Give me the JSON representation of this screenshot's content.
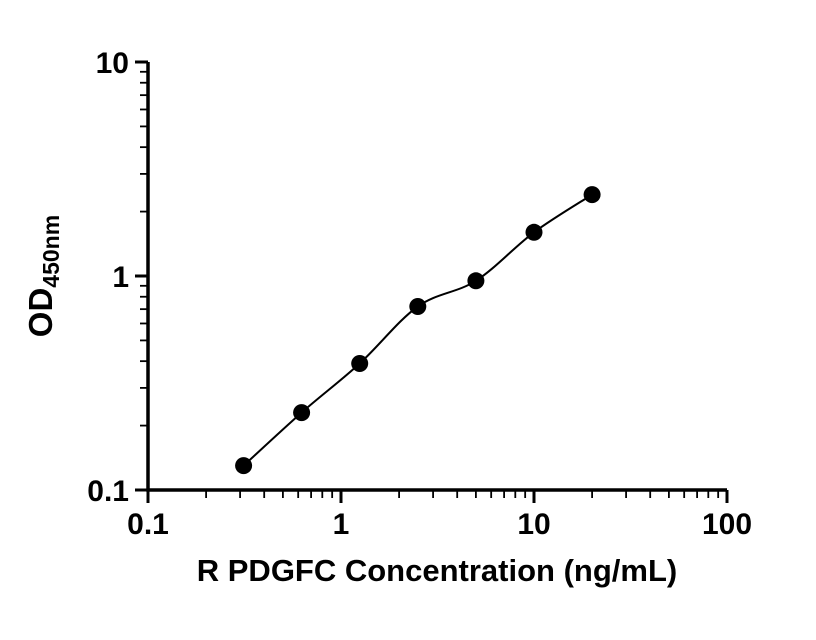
{
  "figure": {
    "background": "#ffffff",
    "axis_color": "#000000",
    "text_color": "#000000"
  },
  "chart_data": {
    "type": "scatter",
    "title": "",
    "xlabel": "R PDGFC Concentration (ng/mL)",
    "ylabel_main": "OD",
    "ylabel_sub": "450nm",
    "x_scale": "log10",
    "y_scale": "log10",
    "xlim": [
      0.1,
      100
    ],
    "ylim": [
      0.1,
      10
    ],
    "x_ticks": [
      0.1,
      1,
      10,
      100
    ],
    "x_tick_labels": [
      "0.1",
      "1",
      "10",
      "100"
    ],
    "y_ticks": [
      0.1,
      1,
      10
    ],
    "y_tick_labels": [
      "0.1",
      "1",
      "10"
    ],
    "grid": false,
    "legend": "none",
    "fit_curve": true,
    "series": [
      {
        "marker": "filled-circle",
        "color": "#000000",
        "x": [
          0.313,
          0.625,
          1.25,
          2.5,
          5,
          10,
          20
        ],
        "y": [
          0.13,
          0.23,
          0.39,
          0.72,
          0.95,
          1.6,
          2.4
        ]
      }
    ]
  }
}
